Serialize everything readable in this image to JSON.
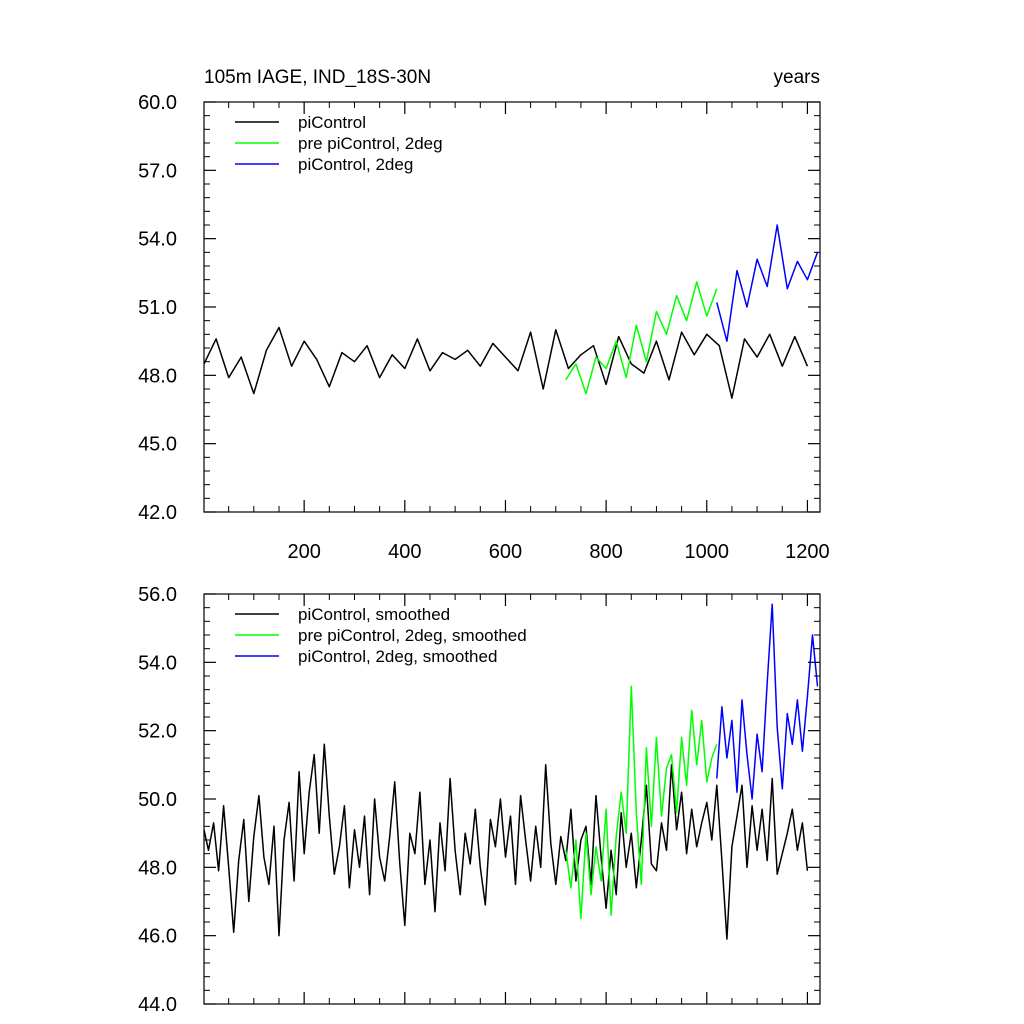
{
  "chart_data": [
    {
      "type": "line",
      "title_left": "105m IAGE, IND_18S-30N",
      "title_right": "years",
      "xlim": [
        1,
        1225
      ],
      "ylim": [
        42.0,
        60.0
      ],
      "xticks": [
        200,
        400,
        600,
        800,
        1000,
        1200
      ],
      "xtick_labels": [
        "200",
        "400",
        "600",
        "800",
        "1000",
        "1200"
      ],
      "yticks": [
        42.0,
        45.0,
        48.0,
        51.0,
        54.0,
        57.0,
        60.0
      ],
      "ytick_labels": [
        "42.0",
        "45.0",
        "48.0",
        "51.0",
        "54.0",
        "57.0",
        "60.0"
      ],
      "legend_position": "top-left",
      "series": [
        {
          "name": "piControl",
          "color": "#000000",
          "x": [
            1,
            25,
            50,
            75,
            100,
            125,
            150,
            175,
            200,
            225,
            250,
            275,
            300,
            325,
            350,
            375,
            400,
            425,
            450,
            475,
            500,
            525,
            550,
            575,
            600,
            625,
            650,
            675,
            700,
            725,
            750,
            775,
            800,
            825,
            850,
            875,
            900,
            925,
            950,
            975,
            1000,
            1025,
            1050,
            1075,
            1100,
            1125,
            1150,
            1175,
            1200
          ],
          "y": [
            48.5,
            49.6,
            47.9,
            48.8,
            47.2,
            49.1,
            50.1,
            48.4,
            49.5,
            48.7,
            47.5,
            49.0,
            48.6,
            49.3,
            47.9,
            48.9,
            48.3,
            49.6,
            48.2,
            49.0,
            48.7,
            49.1,
            48.4,
            49.4,
            48.8,
            48.2,
            49.9,
            47.4,
            50.0,
            48.3,
            48.9,
            49.3,
            47.6,
            49.7,
            48.5,
            48.1,
            49.5,
            47.8,
            49.9,
            48.9,
            49.8,
            49.3,
            47.0,
            49.6,
            48.8,
            49.8,
            48.4,
            49.7,
            48.4
          ]
        },
        {
          "name": "pre piControl, 2deg",
          "color": "#00ff00",
          "x": [
            720,
            740,
            760,
            780,
            800,
            820,
            840,
            860,
            880,
            900,
            920,
            940,
            960,
            980,
            1000,
            1020
          ],
          "y": [
            47.8,
            48.5,
            47.2,
            48.8,
            48.3,
            49.5,
            47.9,
            50.2,
            48.6,
            50.8,
            49.8,
            51.5,
            50.4,
            52.1,
            50.6,
            51.8
          ]
        },
        {
          "name": "piControl, 2deg",
          "color": "#0000ff",
          "x": [
            1020,
            1040,
            1060,
            1080,
            1100,
            1120,
            1140,
            1160,
            1180,
            1200,
            1220
          ],
          "y": [
            51.2,
            49.5,
            52.6,
            51.0,
            53.1,
            51.9,
            54.6,
            51.8,
            53.0,
            52.2,
            53.4
          ]
        }
      ]
    },
    {
      "type": "line",
      "xlim": [
        1,
        1225
      ],
      "ylim": [
        44.0,
        56.0
      ],
      "yticks": [
        44.0,
        46.0,
        48.0,
        50.0,
        52.0,
        54.0,
        56.0
      ],
      "ytick_labels": [
        "44.0",
        "46.0",
        "48.0",
        "50.0",
        "52.0",
        "54.0",
        "56.0"
      ],
      "legend_position": "top-left",
      "series": [
        {
          "name": "piControl, smoothed",
          "color": "#000000",
          "x": [
            1,
            10,
            20,
            30,
            40,
            50,
            60,
            70,
            80,
            90,
            100,
            110,
            120,
            130,
            140,
            150,
            160,
            170,
            180,
            190,
            200,
            210,
            220,
            230,
            240,
            250,
            260,
            270,
            280,
            290,
            300,
            310,
            320,
            330,
            340,
            350,
            360,
            370,
            380,
            390,
            400,
            410,
            420,
            430,
            440,
            450,
            460,
            470,
            480,
            490,
            500,
            510,
            520,
            530,
            540,
            550,
            560,
            570,
            580,
            590,
            600,
            610,
            620,
            630,
            640,
            650,
            660,
            670,
            680,
            690,
            700,
            710,
            720,
            730,
            740,
            750,
            760,
            770,
            780,
            790,
            800,
            810,
            820,
            830,
            840,
            850,
            860,
            870,
            880,
            890,
            900,
            910,
            920,
            930,
            940,
            950,
            960,
            970,
            980,
            990,
            1000,
            1010,
            1020,
            1030,
            1040,
            1050,
            1060,
            1070,
            1080,
            1090,
            1100,
            1110,
            1120,
            1130,
            1140,
            1150,
            1160,
            1170,
            1180,
            1190,
            1200
          ],
          "y": [
            49.1,
            48.5,
            49.3,
            47.9,
            49.8,
            48.0,
            46.1,
            48.2,
            49.4,
            47.0,
            48.9,
            50.1,
            48.3,
            47.5,
            49.2,
            46.0,
            48.8,
            49.9,
            47.6,
            50.8,
            48.4,
            50.2,
            51.3,
            49.0,
            51.6,
            49.5,
            47.8,
            48.6,
            49.8,
            47.4,
            49.1,
            48.0,
            49.5,
            47.2,
            50.0,
            48.3,
            47.6,
            48.9,
            50.5,
            48.1,
            46.3,
            49.0,
            48.4,
            50.2,
            47.5,
            48.8,
            46.7,
            49.3,
            47.9,
            50.6,
            48.5,
            47.2,
            49.0,
            48.1,
            49.7,
            48.0,
            46.9,
            49.4,
            48.6,
            50.0,
            48.3,
            49.5,
            47.5,
            50.1,
            48.8,
            47.6,
            49.2,
            48.0,
            51.0,
            48.7,
            47.5,
            48.9,
            48.2,
            49.7,
            47.6,
            48.8,
            49.2,
            47.5,
            50.1,
            48.3,
            46.8,
            48.5,
            47.2,
            49.6,
            48.0,
            49.0,
            47.4,
            48.8,
            50.4,
            48.1,
            47.9,
            49.3,
            48.5,
            51.0,
            49.1,
            50.2,
            48.4,
            49.7,
            48.6,
            49.3,
            49.9,
            48.8,
            50.4,
            48.2,
            45.9,
            48.6,
            49.5,
            50.4,
            48.0,
            49.8,
            48.5,
            49.7,
            48.2,
            50.6,
            47.8,
            48.4,
            49.0,
            49.7,
            48.5,
            49.3,
            47.9
          ]
        },
        {
          "name": "pre piControl, 2deg, smoothed",
          "color": "#00ff00",
          "x": [
            720,
            730,
            740,
            750,
            760,
            770,
            780,
            790,
            800,
            810,
            820,
            830,
            840,
            850,
            860,
            870,
            880,
            890,
            900,
            910,
            920,
            930,
            940,
            950,
            960,
            970,
            980,
            990,
            1000,
            1010,
            1020
          ],
          "y": [
            48.5,
            47.4,
            48.8,
            46.5,
            49.0,
            47.2,
            48.6,
            47.6,
            49.7,
            46.6,
            48.9,
            50.2,
            49.0,
            53.3,
            49.6,
            47.5,
            51.5,
            49.2,
            51.8,
            49.5,
            50.9,
            51.3,
            49.6,
            51.8,
            50.4,
            52.6,
            51.0,
            52.3,
            50.5,
            51.2,
            51.6
          ]
        },
        {
          "name": "piControl, 2deg, smoothed",
          "color": "#0000ff",
          "x": [
            1020,
            1030,
            1040,
            1050,
            1060,
            1070,
            1080,
            1090,
            1100,
            1110,
            1120,
            1130,
            1140,
            1150,
            1160,
            1170,
            1180,
            1190,
            1200,
            1210,
            1220
          ],
          "y": [
            50.6,
            52.7,
            51.2,
            52.3,
            50.2,
            52.9,
            51.3,
            50.0,
            51.9,
            50.8,
            53.4,
            55.7,
            52.1,
            50.3,
            52.5,
            51.6,
            52.9,
            51.4,
            53.0,
            54.8,
            53.3
          ]
        }
      ]
    }
  ]
}
